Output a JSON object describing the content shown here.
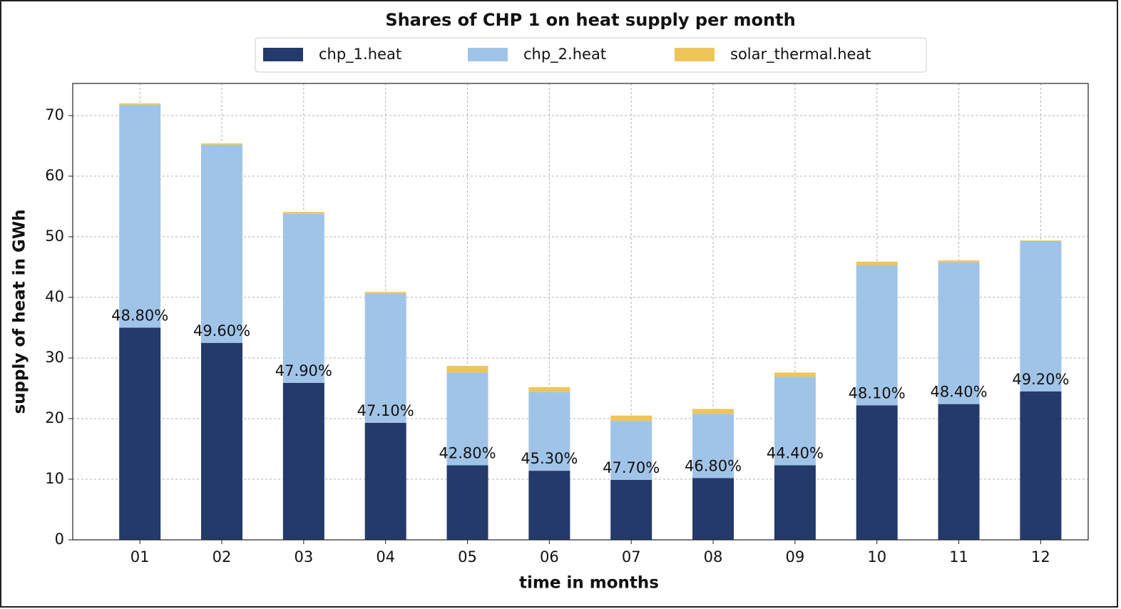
{
  "chart_data": {
    "type": "stacked-bar",
    "title": "Shares of CHP 1 on heat supply per month",
    "x_label": "time in months",
    "y_label": "supply of heat in GWh",
    "categories": [
      "01",
      "02",
      "03",
      "04",
      "05",
      "06",
      "07",
      "08",
      "09",
      "10",
      "11",
      "12"
    ],
    "series": [
      {
        "name": "chp_1.heat",
        "color": "#233a6a",
        "values": [
          35.0,
          32.5,
          25.9,
          19.3,
          12.3,
          11.4,
          9.9,
          10.2,
          12.3,
          22.2,
          22.4,
          24.5
        ]
      },
      {
        "name": "chp_2.heat",
        "color": "#a0c4e8",
        "values": [
          36.8,
          32.7,
          27.9,
          21.3,
          15.3,
          13.0,
          9.7,
          10.6,
          14.6,
          23.1,
          23.4,
          24.8
        ]
      },
      {
        "name": "solar_thermal.heat",
        "color": "#eec55a",
        "values": [
          0.2,
          0.2,
          0.3,
          0.3,
          1.1,
          0.8,
          0.9,
          0.8,
          0.7,
          0.6,
          0.3,
          0.1
        ]
      }
    ],
    "shares": {
      "values": [
        48.8,
        49.6,
        47.9,
        47.1,
        42.8,
        45.3,
        47.7,
        46.8,
        44.4,
        48.1,
        48.4,
        49.2
      ],
      "value_labels": [
        "48.80%",
        "49.60%",
        "47.90%",
        "47.10%",
        "42.80%",
        "45.30%",
        "47.70%",
        "46.80%",
        "44.40%",
        "48.10%",
        "48.40%",
        "49.20%"
      ]
    },
    "ylim": [
      0,
      75.3
    ],
    "yticks": [
      0,
      10,
      20,
      30,
      40,
      50,
      60,
      70
    ],
    "grid": true,
    "legend": "top"
  }
}
